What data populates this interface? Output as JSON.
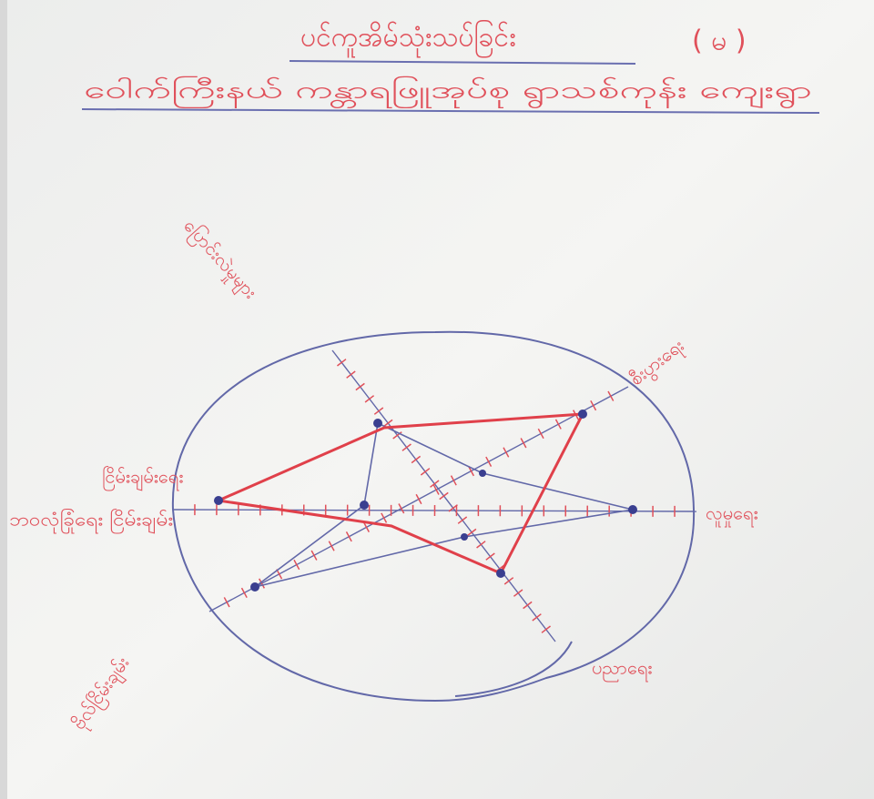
{
  "header": {
    "title": "ပင်ကူအိမ်သုံးသပ်ခြင်း",
    "number": "( မ )",
    "subtitle": "ဝေါက်ကြီးနယ် ကန္တာရဖြူအုပ်စု ရွာသစ်ကုန်း ကျေးရွာ"
  },
  "axes": {
    "labels": [
      "ပြောင်းလဲမှုများ",
      "စီးပွားရေး",
      "လူမှုရေး",
      "ပညာရေး",
      "ဗိုလ်ငြိမ်းချမ်း",
      "ငြိမ်းချမ်းရေး",
      "ဘဝလုံခြုံရေး ငြိမ်းချမ်း"
    ]
  }
}
